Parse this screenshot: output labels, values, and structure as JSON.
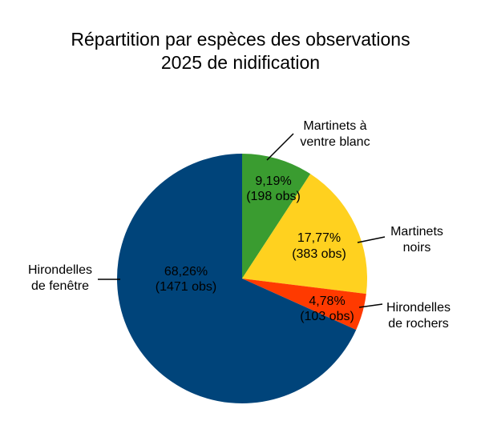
{
  "chart_data": {
    "type": "pie",
    "title": [
      "Répartition par espèces des observations",
      "2025 de nidification"
    ],
    "start_angle_deg": 0,
    "direction": "clockwise",
    "legend": "none",
    "slices": [
      {
        "name": [
          "Martinets à",
          "ventre blanc"
        ],
        "percent_label": "9,19%",
        "count_label": "(198 obs)",
        "percent": 9.19,
        "count": 198,
        "color": "#3a9c30"
      },
      {
        "name": [
          "Martinets",
          "noirs"
        ],
        "percent_label": "17,77%",
        "count_label": "(383 obs)",
        "percent": 17.77,
        "count": 383,
        "color": "#ffd11f"
      },
      {
        "name": [
          "Hirondelles",
          "de rochers"
        ],
        "percent_label": "4,78%",
        "count_label": "(103 obs)",
        "percent": 4.78,
        "count": 103,
        "color": "#ff3a00"
      },
      {
        "name": [
          "Hirondelles",
          "de fenêtre"
        ],
        "percent_label": "68,26%",
        "count_label": "(1471 obs)",
        "percent": 68.26,
        "count": 1471,
        "color": "#00447a"
      }
    ]
  }
}
